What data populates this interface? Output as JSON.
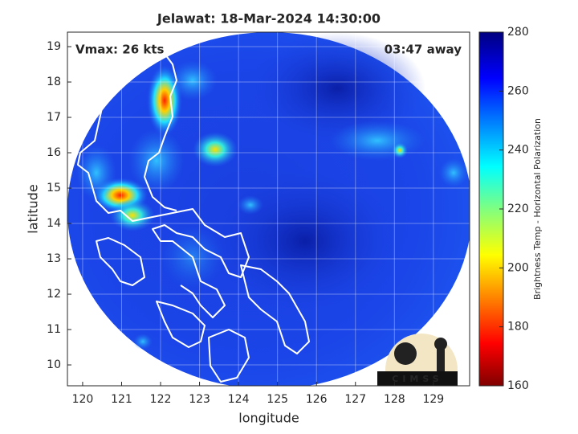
{
  "chart_data": {
    "type": "image",
    "title": "Jelawat: 18-Mar-2024 14:30:00",
    "annotations": [
      "Vmax: 26 kts",
      "03:47 away"
    ],
    "xlabel": "longitude",
    "ylabel": "latitude",
    "xlim": [
      119.61,
      129.93
    ],
    "xticks": [
      120,
      121,
      122,
      123,
      124,
      125,
      126,
      127,
      128,
      129
    ],
    "ylim": [
      9.41,
      19.41
    ],
    "yticks": [
      10,
      11,
      12,
      13,
      14,
      15,
      16,
      17,
      18,
      19
    ],
    "grid": true,
    "colorbar": {
      "label": "Brightness Temp - Horizontal Polarization",
      "lim": [
        160,
        280
      ],
      "ticks": [
        160,
        180,
        200,
        220,
        240,
        260,
        280
      ]
    },
    "logo": "CIMSS"
  }
}
